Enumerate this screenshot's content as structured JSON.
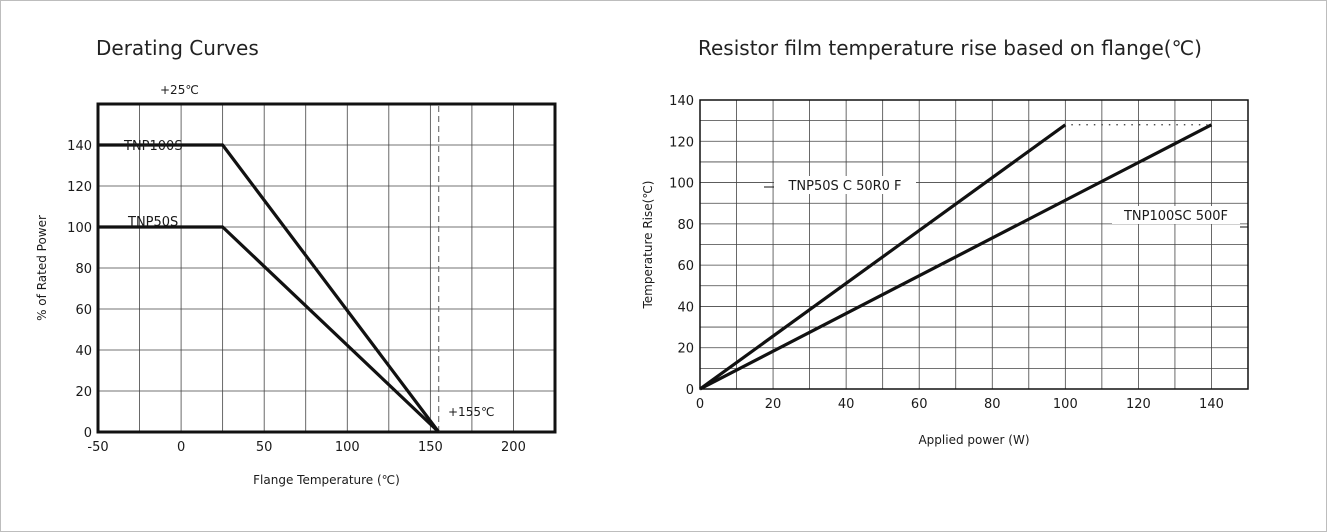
{
  "panel": {
    "border_color": "#bdbdbd"
  },
  "chart_data": [
    {
      "type": "line",
      "title": "Derating Curves",
      "xlabel": "Flange Temperature (℃)",
      "ylabel": "% of Rated Power",
      "xlim": [
        -50,
        225
      ],
      "ylim": [
        0,
        160
      ],
      "xticks": [
        -50,
        0,
        50,
        100,
        150,
        200
      ],
      "yticks": [
        0,
        20,
        40,
        60,
        80,
        100,
        120,
        140
      ],
      "grid": true,
      "annotations": [
        "+25℃",
        "+155℃"
      ],
      "series": [
        {
          "name": "TNP100S",
          "x": [
            -50,
            25,
            155
          ],
          "y": [
            140,
            140,
            0
          ]
        },
        {
          "name": "TNP50S",
          "x": [
            -50,
            25,
            155
          ],
          "y": [
            100,
            100,
            0
          ]
        }
      ],
      "line_color": "#111111"
    },
    {
      "type": "line",
      "title": "Resistor film temperature rise based on flange(℃)",
      "xlabel": "Applied power (W)",
      "ylabel": "Temperature Rise(℃)",
      "xlim": [
        0,
        150
      ],
      "ylim": [
        0,
        140
      ],
      "xticks": [
        0,
        20,
        40,
        60,
        80,
        100,
        120,
        140
      ],
      "yticks": [
        0,
        20,
        40,
        60,
        80,
        100,
        120,
        140
      ],
      "grid": true,
      "series": [
        {
          "name": "TNP50S C 50R0 F",
          "x": [
            0,
            100
          ],
          "y": [
            0,
            128
          ]
        },
        {
          "name": "TNP100SC 500F",
          "x": [
            0,
            140
          ],
          "y": [
            0,
            128
          ]
        }
      ],
      "line_color": "#111111"
    }
  ]
}
